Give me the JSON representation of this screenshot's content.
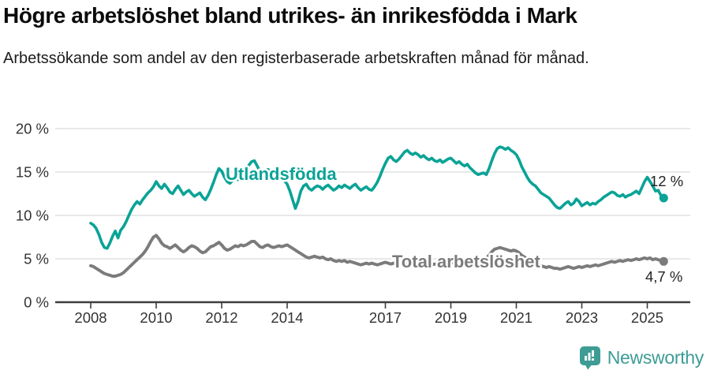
{
  "chart_data": {
    "type": "line",
    "title": "Högre arbetslöshet bland utrikes- än inrikesfödda i Mark",
    "subtitle": "Arbetssökande som andel av den registerbaserade arbetskraften månad för månad.",
    "x_start_year": 2008,
    "x_interval": "monthly",
    "x_end": "2025-07",
    "x_ticks": [
      2008,
      2010,
      2012,
      2014,
      2017,
      2019,
      2021,
      2023,
      2025
    ],
    "y_ticks": [
      0,
      5,
      10,
      15,
      20
    ],
    "y_tick_labels": [
      "0 %",
      "5 %",
      "10 %",
      "15 %",
      "20 %"
    ],
    "ylim": [
      0,
      20
    ],
    "grid": true,
    "legend": "inline-labels",
    "series": [
      {
        "name": "Utlandsfödda",
        "color": "#0aa396",
        "end_label": "12 %",
        "end_value": 12.0,
        "values": [
          9.1,
          8.9,
          8.5,
          7.8,
          6.9,
          6.3,
          6.2,
          6.8,
          7.6,
          8.2,
          7.4,
          8.3,
          8.7,
          9.3,
          10.0,
          10.7,
          11.2,
          11.6,
          11.3,
          11.8,
          12.2,
          12.6,
          12.9,
          13.3,
          13.9,
          13.4,
          13.1,
          13.6,
          13.2,
          12.7,
          12.5,
          13.0,
          13.4,
          12.9,
          12.4,
          12.7,
          12.9,
          12.5,
          12.2,
          12.4,
          12.6,
          12.1,
          11.8,
          12.3,
          13.0,
          13.8,
          14.7,
          15.4,
          15.1,
          14.4,
          13.9,
          13.7,
          14.0,
          14.3,
          14.1,
          14.5,
          14.9,
          15.3,
          15.8,
          16.2,
          16.3,
          15.7,
          15.1,
          14.9,
          15.2,
          15.3,
          14.9,
          14.7,
          15.0,
          14.9,
          14.5,
          14.0,
          13.6,
          12.8,
          11.8,
          10.8,
          11.6,
          12.8,
          13.4,
          13.6,
          13.1,
          12.9,
          13.2,
          13.4,
          13.3,
          13.0,
          13.3,
          13.5,
          13.2,
          12.9,
          13.1,
          13.4,
          13.2,
          13.5,
          13.3,
          13.1,
          13.4,
          13.6,
          13.2,
          12.9,
          13.1,
          13.3,
          13.0,
          12.9,
          13.3,
          13.8,
          14.5,
          15.3,
          16.0,
          16.6,
          16.8,
          16.4,
          16.2,
          16.5,
          16.9,
          17.3,
          17.5,
          17.2,
          17.0,
          17.2,
          17.0,
          16.7,
          16.9,
          16.6,
          16.4,
          16.6,
          16.3,
          16.2,
          16.4,
          16.1,
          16.3,
          16.5,
          16.6,
          16.3,
          16.0,
          16.2,
          15.9,
          15.7,
          15.9,
          15.5,
          15.2,
          14.9,
          14.7,
          14.8,
          14.9,
          14.7,
          15.4,
          16.3,
          17.1,
          17.7,
          17.9,
          17.8,
          17.6,
          17.8,
          17.5,
          17.3,
          17.0,
          16.4,
          15.6,
          15.0,
          14.4,
          13.9,
          13.6,
          13.4,
          13.0,
          12.6,
          12.4,
          12.2,
          12.0,
          11.6,
          11.2,
          10.9,
          10.8,
          11.1,
          11.4,
          11.6,
          11.2,
          11.4,
          11.9,
          11.6,
          11.1,
          11.3,
          11.5,
          11.2,
          11.4,
          11.3,
          11.6,
          11.8,
          12.1,
          12.3,
          12.5,
          12.7,
          12.6,
          12.3,
          12.2,
          12.4,
          12.1,
          12.3,
          12.4,
          12.6,
          12.8,
          12.5,
          13.2,
          13.9,
          14.4,
          13.9,
          13.4,
          12.8,
          12.9,
          12.3,
          12.0
        ]
      },
      {
        "name": "Total arbetslöshet",
        "color": "#7b7b7b",
        "end_label": "4,7 %",
        "end_value": 4.7,
        "values": [
          4.2,
          4.1,
          3.9,
          3.7,
          3.5,
          3.3,
          3.2,
          3.1,
          3.0,
          3.0,
          3.1,
          3.2,
          3.4,
          3.7,
          4.0,
          4.3,
          4.6,
          4.9,
          5.2,
          5.5,
          5.9,
          6.4,
          7.0,
          7.5,
          7.7,
          7.3,
          6.8,
          6.5,
          6.4,
          6.2,
          6.4,
          6.6,
          6.3,
          6.0,
          5.8,
          6.0,
          6.3,
          6.5,
          6.4,
          6.2,
          5.9,
          5.7,
          5.8,
          6.1,
          6.4,
          6.5,
          6.7,
          6.9,
          6.6,
          6.2,
          6.0,
          6.1,
          6.3,
          6.5,
          6.4,
          6.6,
          6.5,
          6.6,
          6.8,
          7.0,
          7.0,
          6.7,
          6.4,
          6.3,
          6.5,
          6.6,
          6.4,
          6.3,
          6.4,
          6.5,
          6.4,
          6.5,
          6.6,
          6.4,
          6.2,
          6.0,
          5.8,
          5.6,
          5.4,
          5.2,
          5.1,
          5.2,
          5.3,
          5.2,
          5.1,
          5.2,
          5.0,
          4.9,
          5.0,
          4.8,
          4.7,
          4.8,
          4.7,
          4.8,
          4.6,
          4.7,
          4.6,
          4.5,
          4.4,
          4.3,
          4.4,
          4.5,
          4.4,
          4.5,
          4.4,
          4.3,
          4.4,
          4.5,
          4.6,
          4.5,
          4.4,
          4.5,
          4.4,
          4.3,
          4.4,
          4.5,
          4.4,
          4.5,
          4.6,
          4.5,
          4.4,
          4.3,
          4.4,
          4.3,
          4.2,
          4.3,
          4.4,
          4.3,
          4.4,
          4.5,
          4.4,
          4.5,
          4.6,
          4.5,
          4.6,
          4.5,
          4.6,
          4.7,
          4.6,
          4.7,
          4.8,
          4.7,
          4.8,
          4.9,
          5.0,
          5.1,
          5.4,
          5.8,
          6.1,
          6.2,
          6.3,
          6.2,
          6.1,
          6.0,
          5.9,
          6.0,
          5.9,
          5.7,
          5.4,
          5.2,
          5.0,
          4.8,
          4.6,
          4.4,
          4.3,
          4.2,
          4.1,
          4.0,
          4.1,
          4.0,
          3.9,
          3.9,
          3.8,
          3.9,
          4.0,
          4.1,
          4.0,
          3.9,
          4.0,
          4.1,
          4.0,
          4.1,
          4.2,
          4.1,
          4.2,
          4.3,
          4.2,
          4.3,
          4.4,
          4.5,
          4.6,
          4.7,
          4.6,
          4.7,
          4.8,
          4.7,
          4.8,
          4.9,
          4.8,
          4.9,
          5.0,
          4.9,
          5.0,
          5.1,
          5.0,
          5.1,
          4.9,
          5.0,
          4.9,
          4.8,
          4.7
        ]
      }
    ]
  },
  "footer": {
    "brand": "Newsworthy",
    "brand_color": "#3e9c95",
    "logo_icon": "newsworthy-speech-bubble-chart"
  }
}
